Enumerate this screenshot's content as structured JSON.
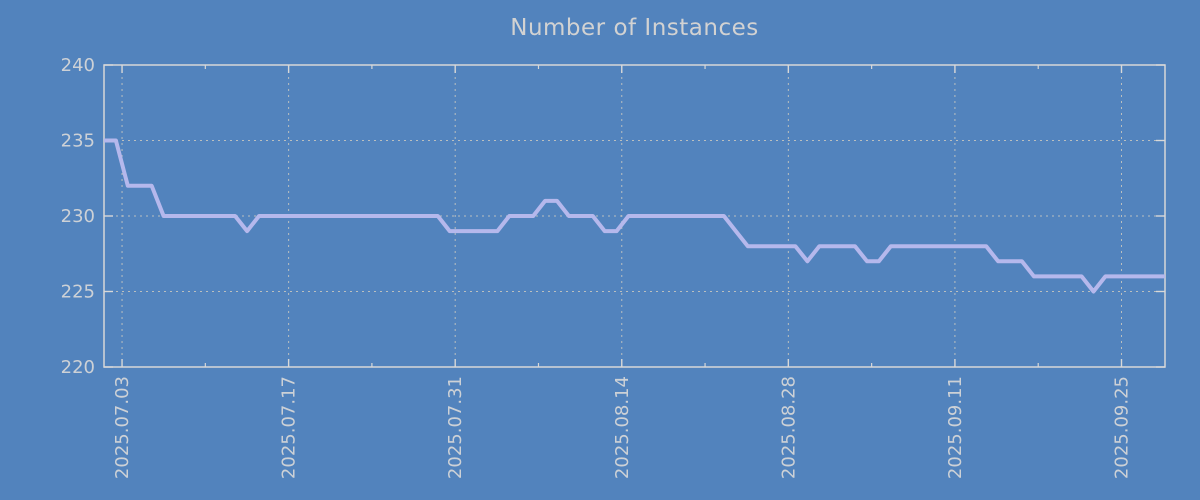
{
  "chart_data": {
    "type": "line",
    "title": "Number of Instances",
    "xlabel": "",
    "ylabel": "",
    "ylim": [
      220,
      240
    ],
    "y_ticks": [
      220,
      225,
      230,
      235,
      240
    ],
    "x_tick_labels": [
      "2025.07.03",
      "2025.07.17",
      "2025.07.31",
      "2025.08.14",
      "2025.08.28",
      "2025.09.11",
      "2025.09.25"
    ],
    "x_tick_positions": [
      0.017,
      0.174,
      0.331,
      0.488,
      0.645,
      0.802,
      0.959
    ],
    "x_minor_tick_positions": [
      0.0955,
      0.2525,
      0.4095,
      0.5665,
      0.7235,
      0.8805
    ],
    "grid": "dashed",
    "legend": "none",
    "series": [
      {
        "name": "instances",
        "values": [
          235,
          235,
          232,
          232,
          232,
          230,
          230,
          230,
          230,
          230,
          230,
          230,
          229,
          230,
          230,
          230,
          230,
          230,
          230,
          230,
          230,
          230,
          230,
          230,
          230,
          230,
          230,
          230,
          230,
          229,
          229,
          229,
          229,
          229,
          230,
          230,
          230,
          231,
          231,
          230,
          230,
          230,
          229,
          229,
          230,
          230,
          230,
          230,
          230,
          230,
          230,
          230,
          230,
          229,
          228,
          228,
          228,
          228,
          228,
          227,
          228,
          228,
          228,
          228,
          227,
          227,
          228,
          228,
          228,
          228,
          228,
          228,
          228,
          228,
          228,
          227,
          227,
          227,
          226,
          226,
          226,
          226,
          226,
          225,
          226,
          226,
          226,
          226,
          226,
          226
        ]
      }
    ],
    "colors": {
      "background": "#5283bd",
      "line": "#b5b8ec",
      "grid": "#c6c6c0",
      "axis": "#d8d8d8",
      "text": "#cdd1d6",
      "title_text": "#d2d2d2"
    }
  }
}
